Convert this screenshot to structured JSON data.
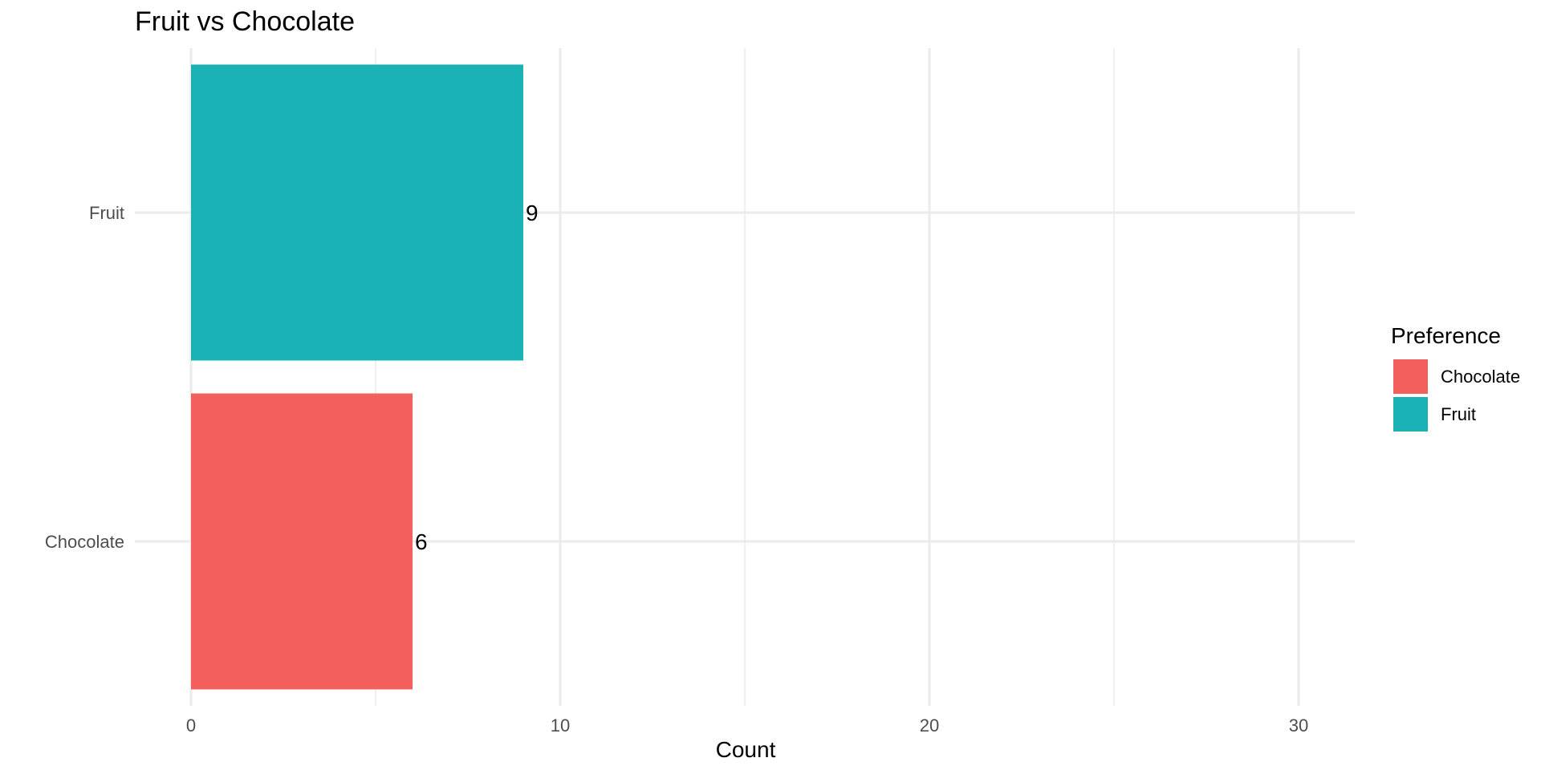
{
  "chart_data": {
    "type": "bar",
    "orientation": "horizontal",
    "title": "Fruit vs Chocolate",
    "xlabel": "Count",
    "ylabel": "",
    "categories": [
      "Chocolate",
      "Fruit"
    ],
    "values": [
      6,
      9
    ],
    "data_labels": [
      "6",
      "9"
    ],
    "colors": [
      "#F25F5C",
      "#1AB2B5"
    ],
    "xlim": [
      0,
      31.5
    ],
    "x_ticks": [
      0,
      10,
      20,
      30
    ],
    "x_minor_ticks": [
      5,
      15,
      25
    ],
    "grid": true,
    "legend": {
      "title": "Preference",
      "placement": "right",
      "entries": [
        {
          "label": "Chocolate",
          "color": "#F25F5C"
        },
        {
          "label": "Fruit",
          "color": "#1AB2B5"
        }
      ]
    }
  }
}
